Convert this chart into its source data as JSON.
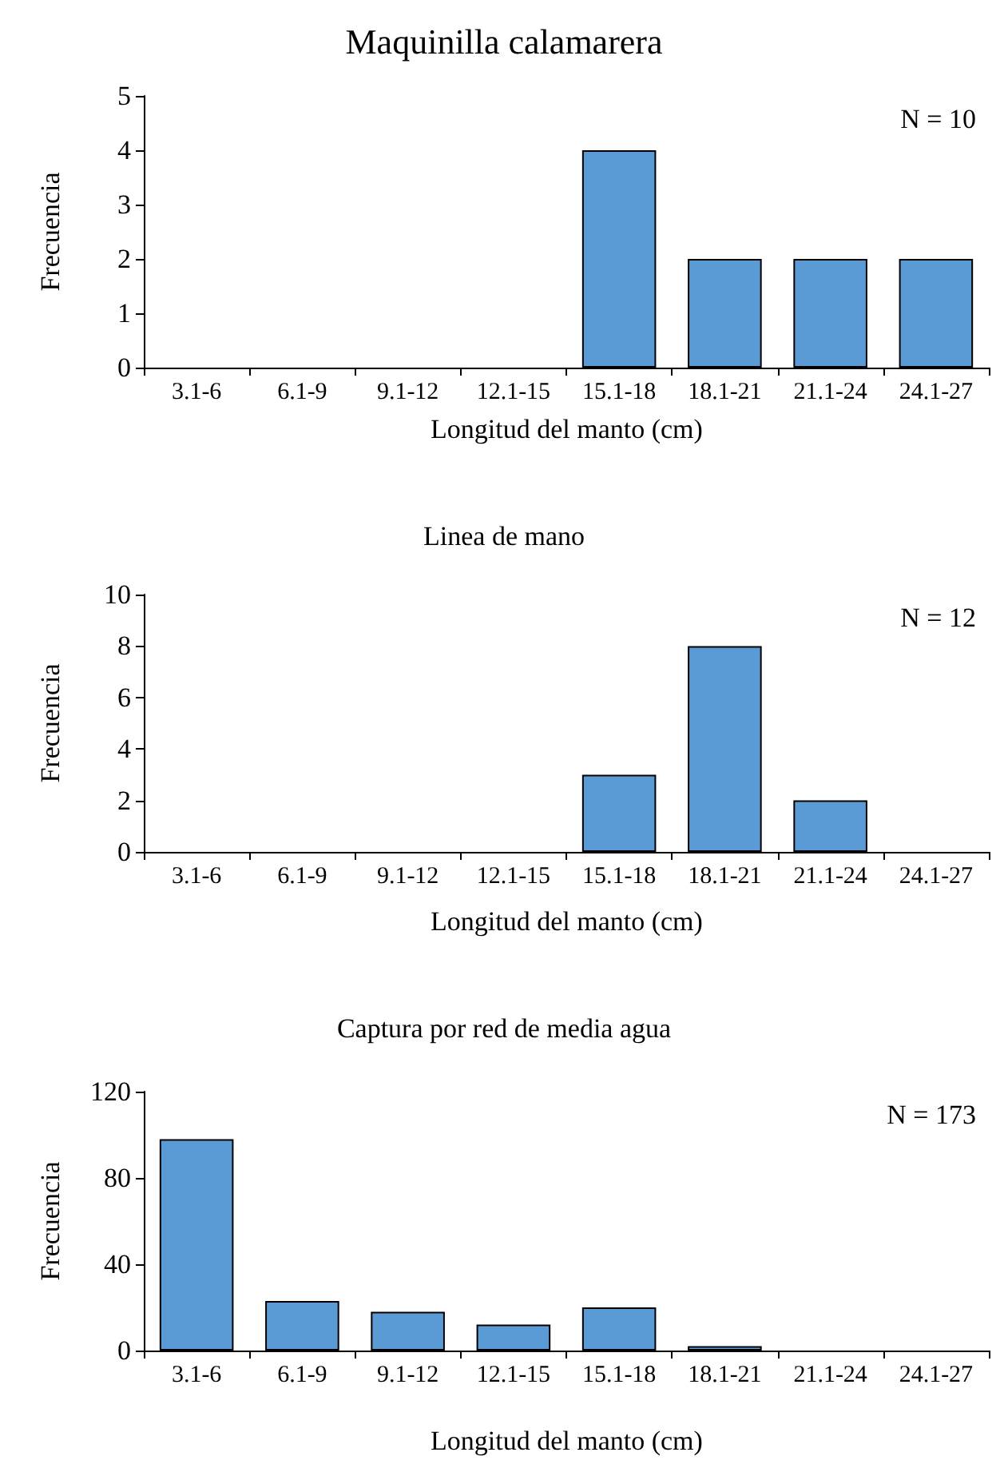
{
  "chart_data": [
    {
      "type": "bar",
      "title": "Maquinilla calamarera",
      "xlabel": "Longitud del manto (cm)",
      "ylabel": "Frecuencia",
      "annotations": [
        "N = 10"
      ],
      "categories": [
        "3.1-6",
        "6.1-9",
        "9.1-12",
        "12.1-15",
        "15.1-18",
        "18.1-21",
        "21.1-24",
        "24.1-27"
      ],
      "values": [
        0,
        0,
        0,
        0,
        4,
        2,
        2,
        2
      ],
      "color": "#5b9bd5",
      "ylim": [
        0,
        5
      ],
      "yticks": [
        0,
        1,
        2,
        3,
        4,
        5
      ],
      "grid": false
    },
    {
      "type": "bar",
      "title": "Linea de mano",
      "xlabel": "Longitud del manto (cm)",
      "ylabel": "Frecuencia",
      "annotations": [
        "N = 12"
      ],
      "categories": [
        "3.1-6",
        "6.1-9",
        "9.1-12",
        "12.1-15",
        "15.1-18",
        "18.1-21",
        "21.1-24",
        "24.1-27"
      ],
      "values": [
        0,
        0,
        0,
        0,
        3,
        8,
        2,
        0
      ],
      "color": "#5b9bd5",
      "ylim": [
        0,
        10
      ],
      "yticks": [
        0,
        2,
        4,
        6,
        8,
        10
      ],
      "grid": false
    },
    {
      "type": "bar",
      "title": "Captura por red de media agua",
      "xlabel": "Longitud del manto (cm)",
      "ylabel": "Frecuencia",
      "annotations": [
        "N = 173"
      ],
      "categories": [
        "3.1-6",
        "6.1-9",
        "9.1-12",
        "12.1-15",
        "15.1-18",
        "18.1-21",
        "21.1-24",
        "24.1-27"
      ],
      "values": [
        98,
        23,
        18,
        12,
        20,
        2,
        0,
        0
      ],
      "color": "#5b9bd5",
      "ylim": [
        0,
        120
      ],
      "yticks": [
        0,
        40,
        80,
        120
      ],
      "grid": false
    }
  ]
}
